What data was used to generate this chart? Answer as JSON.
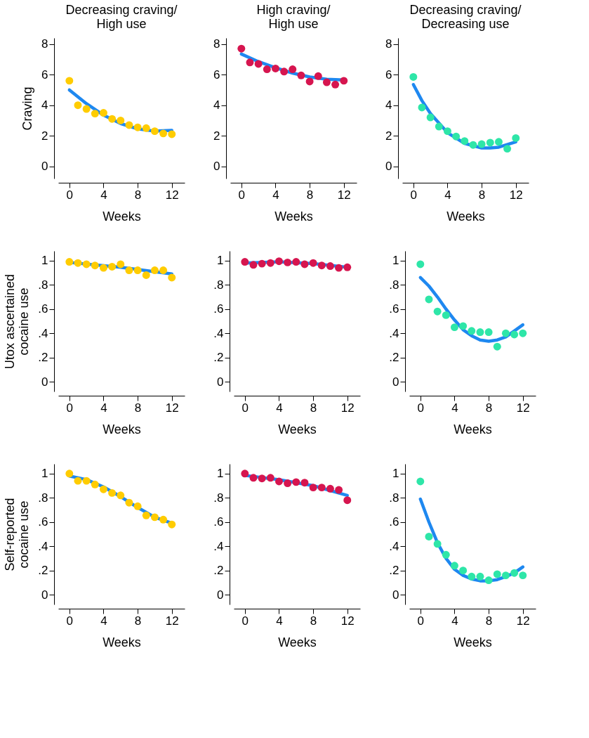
{
  "chart_data": [
    {
      "type": "scatter",
      "title": "Decreasing craving/High use",
      "ylabel": "Craving",
      "xlabel": "Weeks",
      "x": [
        0,
        1,
        2,
        3,
        4,
        5,
        6,
        7,
        8,
        9,
        10,
        11,
        12
      ],
      "xlim": [
        -1.3,
        13.5
      ],
      "xticks": [
        0,
        4,
        8,
        12
      ],
      "ylim": [
        -0.8,
        8.4
      ],
      "yticks": [
        0,
        2,
        4,
        6,
        8
      ],
      "grid": false,
      "line_style": "solid",
      "series": [
        {
          "type": "scatter",
          "marker": "circle",
          "color": "#ffcc00",
          "values": [
            5.6,
            4.0,
            3.75,
            3.45,
            3.5,
            3.1,
            3.0,
            2.7,
            2.55,
            2.5,
            2.3,
            2.15,
            2.1
          ]
        },
        {
          "type": "line",
          "color": "#1e88f0",
          "x": [
            0,
            2,
            4,
            6,
            8,
            10,
            12
          ],
          "values": [
            5.0,
            4.1,
            3.35,
            2.8,
            2.45,
            2.3,
            2.35
          ]
        }
      ]
    },
    {
      "type": "scatter",
      "title": "High craving/High use",
      "xlabel": "Weeks",
      "x": [
        0,
        1,
        2,
        3,
        4,
        5,
        6,
        7,
        8,
        9,
        10,
        11,
        12
      ],
      "xlim": [
        -1.3,
        13.5
      ],
      "xticks": [
        0,
        4,
        8,
        12
      ],
      "ylim": [
        -0.8,
        8.4
      ],
      "yticks": [
        0,
        2,
        4,
        6,
        8
      ],
      "grid": false,
      "line_style": "solid",
      "series": [
        {
          "type": "scatter",
          "marker": "circle",
          "color": "#d6154f",
          "values": [
            7.7,
            6.8,
            6.7,
            6.35,
            6.4,
            6.2,
            6.35,
            5.95,
            5.55,
            5.9,
            5.5,
            5.35,
            5.6
          ]
        },
        {
          "type": "line",
          "color": "#1e88f0",
          "x": [
            0,
            2,
            4,
            6,
            8,
            10,
            12
          ],
          "values": [
            7.35,
            6.85,
            6.45,
            6.1,
            5.85,
            5.7,
            5.65
          ]
        }
      ]
    },
    {
      "type": "scatter",
      "title": "Decreasing craving/Decreasing use",
      "xlabel": "Weeks",
      "x": [
        0,
        1,
        2,
        3,
        4,
        5,
        6,
        7,
        8,
        9,
        10,
        11,
        12
      ],
      "xlim": [
        -1.3,
        13.5
      ],
      "xticks": [
        0,
        4,
        8,
        12
      ],
      "ylim": [
        -0.8,
        8.4
      ],
      "yticks": [
        0,
        2,
        4,
        6,
        8
      ],
      "grid": false,
      "line_style": "solid",
      "series": [
        {
          "type": "scatter",
          "marker": "circle",
          "color": "#2ee6a8",
          "values": [
            5.85,
            3.85,
            3.2,
            2.6,
            2.3,
            1.95,
            1.65,
            1.4,
            1.45,
            1.55,
            1.6,
            1.15,
            1.85
          ]
        },
        {
          "type": "line",
          "color": "#1e88f0",
          "x": [
            0,
            1,
            2,
            4,
            6,
            8,
            9,
            10,
            12
          ],
          "values": [
            5.35,
            4.3,
            3.45,
            2.2,
            1.5,
            1.2,
            1.2,
            1.25,
            1.6
          ]
        }
      ]
    },
    {
      "type": "scatter",
      "ylabel": "Utox ascertained cocaine use",
      "xlabel": "Weeks",
      "x": [
        0,
        1,
        2,
        3,
        4,
        5,
        6,
        7,
        8,
        9,
        10,
        11,
        12
      ],
      "xlim": [
        -1.3,
        13.5
      ],
      "xticks": [
        0,
        4,
        8,
        12
      ],
      "ylim": [
        -0.08,
        1.08
      ],
      "yticks": [
        0,
        {
          "value": 0.2,
          "label": ".2"
        },
        {
          "value": 0.4,
          "label": ".4"
        },
        {
          "value": 0.6,
          "label": ".6"
        },
        {
          "value": 0.8,
          "label": ".8"
        },
        1
      ],
      "grid": false,
      "line_style": "solid",
      "series": [
        {
          "type": "scatter",
          "marker": "circle",
          "color": "#ffcc00",
          "values": [
            0.99,
            0.98,
            0.97,
            0.96,
            0.94,
            0.95,
            0.97,
            0.92,
            0.92,
            0.88,
            0.92,
            0.92,
            0.86
          ]
        },
        {
          "type": "line",
          "color": "#1e88f0",
          "x": [
            0,
            6,
            12
          ],
          "values": [
            0.985,
            0.945,
            0.89
          ]
        }
      ]
    },
    {
      "type": "scatter",
      "xlabel": "Weeks",
      "x": [
        0,
        1,
        2,
        3,
        4,
        5,
        6,
        7,
        8,
        9,
        10,
        11,
        12
      ],
      "xlim": [
        -1.3,
        13.5
      ],
      "xticks": [
        0,
        4,
        8,
        12
      ],
      "ylim": [
        -0.08,
        1.08
      ],
      "yticks": [
        0,
        {
          "value": 0.2,
          "label": ".2"
        },
        {
          "value": 0.4,
          "label": ".4"
        },
        {
          "value": 0.6,
          "label": ".6"
        },
        {
          "value": 0.8,
          "label": ".8"
        },
        1
      ],
      "grid": false,
      "line_style": "solid",
      "series": [
        {
          "type": "scatter",
          "marker": "circle",
          "color": "#d6154f",
          "values": [
            0.99,
            0.965,
            0.975,
            0.98,
            0.995,
            0.985,
            0.99,
            0.97,
            0.98,
            0.96,
            0.955,
            0.94,
            0.945
          ]
        },
        {
          "type": "line",
          "color": "#1e88f0",
          "x": [
            0,
            4,
            8,
            12
          ],
          "values": [
            0.98,
            0.99,
            0.975,
            0.945
          ]
        }
      ]
    },
    {
      "type": "scatter",
      "xlabel": "Weeks",
      "x": [
        0,
        1,
        2,
        3,
        4,
        5,
        6,
        7,
        8,
        9,
        10,
        11,
        12
      ],
      "xlim": [
        -1.3,
        13.5
      ],
      "xticks": [
        0,
        4,
        8,
        12
      ],
      "ylim": [
        -0.08,
        1.08
      ],
      "yticks": [
        0,
        {
          "value": 0.2,
          "label": ".2"
        },
        {
          "value": 0.4,
          "label": ".4"
        },
        {
          "value": 0.6,
          "label": ".6"
        },
        {
          "value": 0.8,
          "label": ".8"
        },
        1
      ],
      "grid": false,
      "line_style": "solid",
      "series": [
        {
          "type": "scatter",
          "marker": "circle",
          "color": "#2ee6a8",
          "values": [
            0.97,
            0.68,
            0.58,
            0.55,
            0.45,
            0.46,
            0.42,
            0.41,
            0.41,
            0.29,
            0.4,
            0.39,
            0.4
          ]
        },
        {
          "type": "line",
          "color": "#1e88f0",
          "x": [
            0,
            1,
            2,
            3,
            4,
            5,
            6,
            7,
            8,
            9,
            10,
            11,
            12
          ],
          "values": [
            0.86,
            0.79,
            0.7,
            0.6,
            0.51,
            0.43,
            0.38,
            0.345,
            0.335,
            0.345,
            0.37,
            0.42,
            0.47
          ]
        }
      ]
    },
    {
      "type": "scatter",
      "ylabel": "Self-reported cocaine use",
      "xlabel": "Weeks",
      "x": [
        0,
        1,
        2,
        3,
        4,
        5,
        6,
        7,
        8,
        9,
        10,
        11,
        12
      ],
      "xlim": [
        -1.3,
        13.5
      ],
      "xticks": [
        0,
        4,
        8,
        12
      ],
      "ylim": [
        -0.08,
        1.08
      ],
      "yticks": [
        0,
        {
          "value": 0.2,
          "label": ".2"
        },
        {
          "value": 0.4,
          "label": ".4"
        },
        {
          "value": 0.6,
          "label": ".6"
        },
        {
          "value": 0.8,
          "label": ".8"
        },
        1
      ],
      "grid": false,
      "line_style": "solid",
      "series": [
        {
          "type": "scatter",
          "marker": "circle",
          "color": "#ffcc00",
          "values": [
            1.0,
            0.94,
            0.94,
            0.91,
            0.87,
            0.84,
            0.82,
            0.76,
            0.73,
            0.655,
            0.64,
            0.62,
            0.58
          ]
        },
        {
          "type": "line",
          "color": "#1e88f0",
          "x": [
            0,
            2,
            4,
            6,
            8,
            10,
            12
          ],
          "values": [
            0.98,
            0.95,
            0.89,
            0.81,
            0.72,
            0.64,
            0.59
          ]
        }
      ]
    },
    {
      "type": "scatter",
      "xlabel": "Weeks",
      "x": [
        0,
        1,
        2,
        3,
        4,
        5,
        6,
        7,
        8,
        9,
        10,
        11,
        12
      ],
      "xlim": [
        -1.3,
        13.5
      ],
      "xticks": [
        0,
        4,
        8,
        12
      ],
      "ylim": [
        -0.08,
        1.08
      ],
      "yticks": [
        0,
        {
          "value": 0.2,
          "label": ".2"
        },
        {
          "value": 0.4,
          "label": ".4"
        },
        {
          "value": 0.6,
          "label": ".6"
        },
        {
          "value": 0.8,
          "label": ".8"
        },
        1
      ],
      "grid": false,
      "line_style": "solid",
      "series": [
        {
          "type": "scatter",
          "marker": "circle",
          "color": "#d6154f",
          "values": [
            1.0,
            0.965,
            0.96,
            0.965,
            0.935,
            0.92,
            0.93,
            0.925,
            0.885,
            0.885,
            0.875,
            0.865,
            0.78
          ]
        },
        {
          "type": "line",
          "color": "#1e88f0",
          "x": [
            0,
            4,
            8,
            12
          ],
          "values": [
            0.985,
            0.95,
            0.9,
            0.82
          ]
        }
      ]
    },
    {
      "type": "scatter",
      "xlabel": "Weeks",
      "x": [
        0,
        1,
        2,
        3,
        4,
        5,
        6,
        7,
        8,
        9,
        10,
        11,
        12
      ],
      "xlim": [
        -1.3,
        13.5
      ],
      "xticks": [
        0,
        4,
        8,
        12
      ],
      "ylim": [
        -0.08,
        1.08
      ],
      "yticks": [
        0,
        {
          "value": 0.2,
          "label": ".2"
        },
        {
          "value": 0.4,
          "label": ".4"
        },
        {
          "value": 0.6,
          "label": ".6"
        },
        {
          "value": 0.8,
          "label": ".8"
        },
        1
      ],
      "grid": false,
      "line_style": "solid",
      "series": [
        {
          "type": "scatter",
          "marker": "circle",
          "color": "#2ee6a8",
          "values": [
            0.935,
            0.48,
            0.42,
            0.33,
            0.24,
            0.2,
            0.15,
            0.15,
            0.12,
            0.17,
            0.16,
            0.18,
            0.16
          ]
        },
        {
          "type": "line",
          "color": "#1e88f0",
          "x": [
            0,
            1,
            2,
            3,
            4,
            5,
            6,
            7,
            8,
            9,
            10,
            11,
            12
          ],
          "values": [
            0.79,
            0.6,
            0.43,
            0.3,
            0.21,
            0.16,
            0.13,
            0.115,
            0.115,
            0.125,
            0.15,
            0.18,
            0.23
          ]
        }
      ]
    }
  ]
}
